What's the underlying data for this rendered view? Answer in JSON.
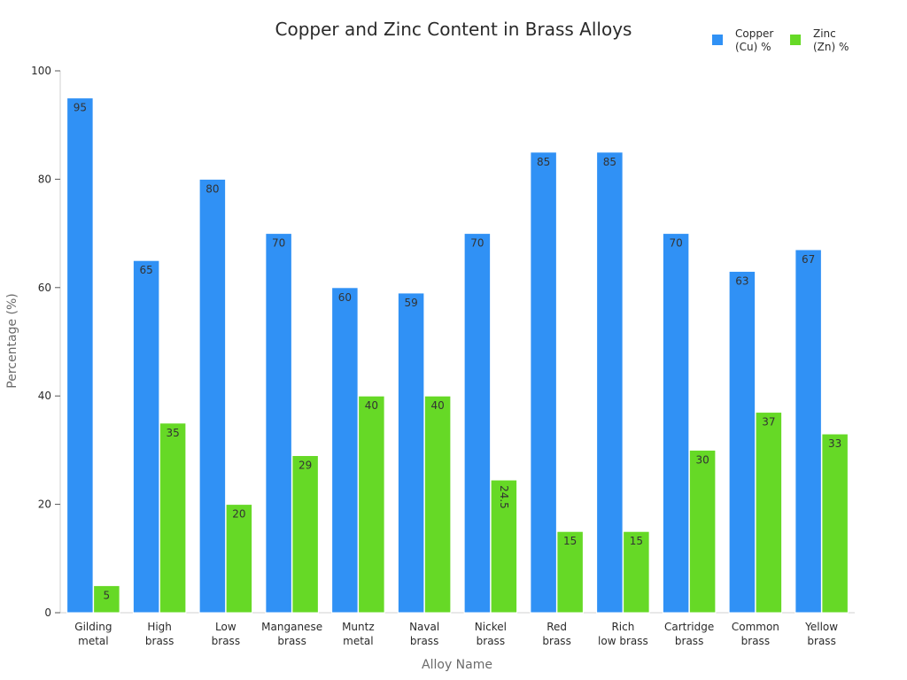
{
  "chart_data": {
    "type": "bar",
    "title": "Copper and Zinc Content in Brass Alloys",
    "xlabel": "Alloy Name",
    "ylabel": "Percentage (%)",
    "ylim": [
      0,
      100
    ],
    "yticks": [
      0,
      20,
      40,
      60,
      80,
      100
    ],
    "grid": false,
    "legend_position": "top-right",
    "categories": [
      [
        "Gilding",
        "metal"
      ],
      [
        "High",
        "brass"
      ],
      [
        "Low",
        "brass"
      ],
      [
        "Manganese",
        "brass"
      ],
      [
        "Muntz",
        "metal"
      ],
      [
        "Naval",
        "brass"
      ],
      [
        "Nickel",
        "brass"
      ],
      [
        "Red",
        "brass"
      ],
      [
        "Rich",
        "low brass"
      ],
      [
        "Cartridge",
        "brass"
      ],
      [
        "Common",
        "brass"
      ],
      [
        "Yellow",
        "brass"
      ]
    ],
    "series": [
      {
        "name": [
          "Copper",
          "(Cu) %"
        ],
        "color": "#3091f5",
        "values": [
          95,
          65,
          80,
          70,
          60,
          59,
          70,
          85,
          85,
          70,
          63,
          67
        ],
        "labels": [
          "95",
          "65",
          "80",
          "70",
          "60",
          "59",
          "70",
          "85",
          "85",
          "70",
          "63",
          "67"
        ]
      },
      {
        "name": [
          "Zinc",
          "(Zn) %"
        ],
        "color": "#66d926",
        "values": [
          5,
          35,
          20,
          29,
          40,
          40,
          24.5,
          15,
          15,
          30,
          37,
          33
        ],
        "labels": [
          "5",
          "35",
          "20",
          "29",
          "40",
          "40",
          "24.5",
          "15",
          "15",
          "30",
          "37",
          "33"
        ]
      }
    ]
  }
}
